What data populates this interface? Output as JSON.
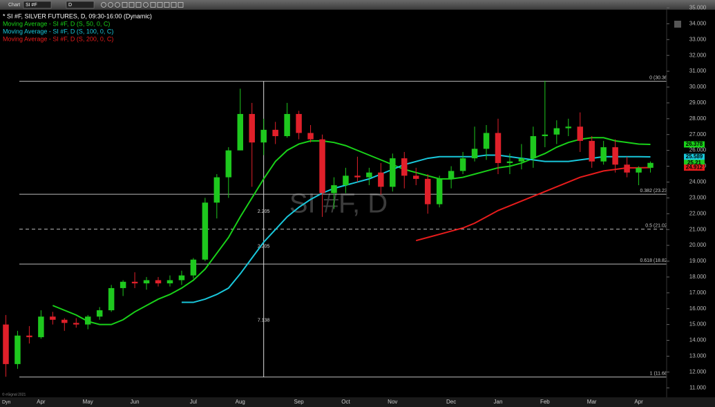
{
  "toolbar": {
    "app": "Chart",
    "symbol": "SI #F",
    "interval": "D"
  },
  "chart_data": {
    "type": "candlestick",
    "title": "* SI #F, SILVER FUTURES, D, 09:30-16:00 (Dynamic)",
    "watermark": "SI #F, D",
    "categories": [
      null,
      null,
      null,
      "Apr",
      null,
      null,
      null,
      "May",
      null,
      null,
      null,
      "Jun",
      null,
      null,
      null,
      null,
      "Jul",
      null,
      null,
      null,
      "Aug",
      null,
      null,
      null,
      null,
      "Sep",
      null,
      null,
      null,
      "Oct",
      null,
      null,
      null,
      "Nov",
      null,
      null,
      null,
      null,
      "Dec",
      null,
      null,
      null,
      "Jan",
      null,
      null,
      null,
      "Feb",
      null,
      null,
      null,
      "Mar",
      null,
      null,
      null,
      "Apr",
      null
    ],
    "open": [
      15.0,
      12.5,
      14.3,
      14.2,
      15.5,
      15.3,
      15.1,
      15.0,
      15.5,
      15.9,
      17.3,
      17.7,
      17.6,
      17.8,
      17.6,
      17.8,
      18.1,
      19.1,
      22.7,
      24.3,
      26.0,
      28.3,
      26.5,
      27.3,
      26.9,
      28.3,
      27.1,
      26.7,
      23.3,
      23.8,
      24.4,
      24.3,
      24.6,
      23.7,
      25.5,
      24.4,
      24.2,
      22.6,
      24.2,
      24.7,
      25.5,
      26.1,
      27.1,
      25.2,
      25.3,
      25.5,
      26.9,
      27.0,
      27.4,
      27.5,
      26.6,
      25.3,
      26.2,
      25.1,
      24.6,
      24.9
    ],
    "high": [
      15.6,
      14.6,
      14.9,
      15.9,
      15.8,
      15.4,
      15.4,
      15.6,
      16.1,
      17.5,
      17.8,
      18.3,
      18.0,
      18.0,
      18.1,
      18.4,
      19.2,
      23.0,
      24.5,
      26.2,
      29.9,
      29.0,
      28.0,
      27.8,
      29.0,
      28.5,
      27.6,
      27.0,
      24.3,
      24.9,
      25.6,
      24.9,
      25.2,
      25.8,
      25.9,
      24.9,
      24.5,
      24.4,
      25.0,
      25.9,
      27.5,
      27.6,
      28.0,
      25.8,
      26.4,
      27.5,
      30.4,
      27.9,
      28.0,
      28.4,
      26.9,
      26.6,
      26.7,
      25.6,
      25.0,
      25.3
    ],
    "low": [
      11.7,
      12.2,
      13.8,
      14.1,
      15.0,
      14.6,
      14.8,
      14.7,
      15.3,
      15.8,
      16.8,
      17.3,
      17.2,
      17.4,
      17.4,
      17.5,
      17.9,
      19.0,
      21.7,
      23.0,
      26.0,
      23.7,
      25.7,
      26.4,
      26.8,
      26.7,
      26.5,
      21.8,
      22.3,
      23.3,
      24.0,
      23.8,
      23.2,
      23.4,
      23.6,
      23.8,
      22.0,
      22.4,
      23.6,
      24.5,
      25.3,
      25.4,
      24.5,
      24.5,
      24.8,
      24.9,
      26.2,
      26.4,
      26.9,
      25.9,
      24.9,
      25.1,
      24.6,
      24.3,
      23.8,
      24.6
    ],
    "close": [
      12.5,
      14.3,
      14.2,
      15.5,
      15.3,
      15.1,
      15.0,
      15.5,
      15.9,
      17.3,
      17.7,
      17.6,
      17.8,
      17.6,
      17.8,
      18.1,
      19.1,
      22.7,
      24.3,
      26.0,
      28.3,
      26.5,
      27.3,
      26.9,
      28.3,
      27.1,
      26.7,
      23.3,
      23.8,
      24.4,
      24.3,
      24.6,
      23.7,
      25.5,
      24.4,
      24.2,
      22.6,
      24.2,
      24.7,
      25.5,
      26.1,
      27.1,
      25.2,
      25.3,
      25.5,
      26.9,
      27.0,
      27.4,
      27.5,
      26.6,
      25.3,
      26.2,
      25.1,
      24.6,
      24.9,
      25.21
    ],
    "up_color": "#1ec81e",
    "down_color": "#e0202a",
    "series": [
      {
        "name": "Moving Average - SI #F, D (S, 50, 0, C)",
        "color": "#19d219",
        "values": [
          null,
          null,
          null,
          null,
          16.2,
          15.9,
          15.6,
          15.2,
          15.0,
          15.0,
          15.3,
          15.8,
          16.2,
          16.6,
          16.9,
          17.3,
          17.8,
          18.5,
          19.5,
          20.5,
          21.8,
          23.0,
          24.2,
          25.3,
          26.0,
          26.4,
          26.6,
          26.6,
          26.5,
          26.3,
          26.0,
          25.7,
          25.4,
          25.1,
          24.8,
          24.6,
          24.4,
          24.2,
          24.2,
          24.3,
          24.5,
          24.7,
          24.9,
          25.0,
          25.2,
          25.5,
          25.8,
          26.2,
          26.5,
          26.7,
          26.8,
          26.8,
          26.6,
          26.5,
          26.4,
          26.378
        ]
      },
      {
        "name": "Moving Average - SI #F, D (S, 100, 0, C)",
        "color": "#19c8dc",
        "values": [
          null,
          null,
          null,
          null,
          null,
          null,
          null,
          null,
          null,
          null,
          null,
          null,
          null,
          null,
          null,
          16.4,
          16.4,
          16.6,
          16.9,
          17.3,
          18.2,
          19.2,
          20.2,
          21.0,
          21.8,
          22.4,
          22.9,
          23.3,
          23.6,
          23.8,
          24.0,
          24.2,
          24.5,
          24.8,
          25.1,
          25.3,
          25.5,
          25.6,
          25.6,
          25.6,
          25.6,
          25.7,
          25.7,
          25.6,
          25.5,
          25.4,
          25.3,
          25.3,
          25.3,
          25.4,
          25.5,
          25.6,
          25.6,
          25.6,
          25.6,
          25.589
        ]
      },
      {
        "name": "Moving Average - SI #F, D (S, 200, 0, C)",
        "color": "#e81c1c",
        "values": [
          null,
          null,
          null,
          null,
          null,
          null,
          null,
          null,
          null,
          null,
          null,
          null,
          null,
          null,
          null,
          null,
          null,
          null,
          null,
          null,
          null,
          null,
          null,
          null,
          null,
          null,
          null,
          null,
          null,
          null,
          null,
          null,
          null,
          null,
          null,
          20.3,
          20.5,
          20.7,
          20.9,
          21.1,
          21.4,
          21.8,
          22.2,
          22.5,
          22.8,
          23.1,
          23.4,
          23.7,
          24.0,
          24.3,
          24.5,
          24.7,
          24.8,
          24.9,
          24.9,
          24.912
        ]
      }
    ],
    "ylim": [
      10.4,
      35.5
    ],
    "yticks": [
      {
        "value": 11,
        "label": "11.000"
      },
      {
        "value": 12,
        "label": "12.000"
      },
      {
        "value": 13,
        "label": "13.000"
      },
      {
        "value": 14,
        "label": "14.000"
      },
      {
        "value": 15,
        "label": "15.000"
      },
      {
        "value": 16,
        "label": "16.000"
      },
      {
        "value": 17,
        "label": "17.000"
      },
      {
        "value": 18,
        "label": "18.000"
      },
      {
        "value": 19,
        "label": "19.000"
      },
      {
        "value": 20,
        "label": "20.000"
      },
      {
        "value": 21,
        "label": "21.000"
      },
      {
        "value": 22,
        "label": "22.000"
      },
      {
        "value": 23,
        "label": "23.000"
      },
      {
        "value": 24,
        "label": "24.000"
      },
      {
        "value": 25,
        "label": "25.000"
      },
      {
        "value": 26,
        "label": "26.000"
      },
      {
        "value": 27,
        "label": "27.000"
      },
      {
        "value": 28,
        "label": "28.000"
      },
      {
        "value": 29,
        "label": "29.000"
      },
      {
        "value": 30,
        "label": "30.000"
      },
      {
        "value": 31,
        "label": "31.000"
      },
      {
        "value": 32,
        "label": "32.000"
      },
      {
        "value": 33,
        "label": "33.000"
      },
      {
        "value": 34,
        "label": "34.000"
      },
      {
        "value": 35,
        "label": "35.000"
      }
    ],
    "fib_levels": [
      {
        "value": 30.368,
        "label": "0 (30.368)",
        "dashed": false
      },
      {
        "value": 23.23,
        "label": "0.382 (23.230)",
        "dashed": false
      },
      {
        "value": 21.025,
        "label": "0.5 (21.025)",
        "dashed": true
      },
      {
        "value": 18.82,
        "label": "0.618 (18.820)",
        "dashed": false
      },
      {
        "value": 11.682,
        "label": "1 (11.682)",
        "dashed": false
      }
    ],
    "fib_ranges": [
      2.205,
      2.205,
      7.138
    ],
    "price_tags": [
      {
        "value": 26.378,
        "color": "#19d219"
      },
      {
        "value": 25.589,
        "color": "#19c8dc"
      },
      {
        "value": 25.21,
        "color": "#1ec81e"
      },
      {
        "value": 24.912,
        "color": "#e81c1c"
      }
    ]
  },
  "footer": {
    "copyright": "© eSignal 2021",
    "mode": "Dyn"
  }
}
